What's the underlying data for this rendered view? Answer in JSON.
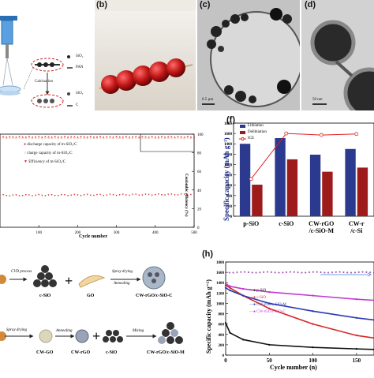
{
  "panels": {
    "a": {
      "labels": {
        "sio2_top": "SiO₂",
        "pan": "PAN",
        "calcination": "Calcination",
        "sio2_bot": "SiOₓ",
        "c": "C"
      }
    },
    "b": {
      "label": "(b)"
    },
    "c": {
      "label": "(c)",
      "scale": "0.5 µm"
    },
    "d": {
      "label": "(d)",
      "scale": "50 nm"
    },
    "e": {
      "legend": [
        "discharge capacity of m-SiOₓ/C",
        "charge capacity of m-SiOₓ/C",
        "Efficiency of m-SiOₓ/C"
      ],
      "xlabel": "Cycle number",
      "ylabel_right": "Coulombic efficiency (%)",
      "xticks": [
        "100",
        "200",
        "300",
        "400",
        "500"
      ],
      "yticks_right": [
        "100",
        "80",
        "60",
        "40",
        "20",
        "0"
      ]
    },
    "f": {
      "label": "(f)",
      "ylabel": "Specific capacity (mAh g⁻¹)",
      "legend": [
        "Lithiation",
        "Delithiation",
        "ICE"
      ],
      "yticks": [
        "1800",
        "1600",
        "1400",
        "1200",
        "1000",
        "800",
        "600",
        "400",
        "200",
        "0"
      ],
      "categories": [
        [
          "p-SiO",
          ""
        ],
        [
          "c-SiO",
          ""
        ],
        [
          "CW-rGO",
          "/c-SiO-M"
        ],
        [
          "CW-r",
          "/c-Si"
        ]
      ]
    },
    "g": {
      "labels": {
        "cvd": "CVD process",
        "csio": "c-SiO",
        "go": "GO",
        "spray1": "Spray drying",
        "anneal1": "Annealing",
        "product1": "CW-rGO/c-SiO-C",
        "spray2": "Spray drying",
        "annealing2": "Annealing",
        "cwgo": "CW-GO",
        "cwrgo": "CW-rGO",
        "csio2": "c-SiO",
        "mixing": "Mixing",
        "product2": "CW-rGO/c-SiO-M"
      }
    },
    "h": {
      "label": "(h)",
      "ylabel": "Specific capacity (mAh g⁻¹)",
      "xlabel": "Cycle number (n)",
      "xticks": [
        "0",
        "50",
        "100",
        "150"
      ],
      "yticks": [
        "1800",
        "1600",
        "1400",
        "1200",
        "1000",
        "800",
        "600",
        "400",
        "200",
        "0"
      ],
      "legend": [
        "p-SiO",
        "c-SiO",
        "CW-rGO/c-SiO-M",
        "CW-rGO/c-SiO-C"
      ]
    }
  },
  "chart_data": [
    {
      "type": "scatter",
      "xlabel": "Cycle number",
      "ylabel_right": "Coulombic efficiency (%)",
      "xlim": [
        0,
        500
      ],
      "ylim_right": [
        0,
        100
      ],
      "series": [
        {
          "name": "discharge capacity of m-SiOₓ/C",
          "x": [
            0,
            500
          ],
          "y": [
            97,
            97
          ],
          "color": "#d62828"
        },
        {
          "name": "charge capacity of m-SiOₓ/C",
          "x": [
            0,
            500
          ],
          "y": [
            96,
            96
          ],
          "color": "#e87b7b"
        },
        {
          "name": "Efficiency of m-SiOₓ/C",
          "x": [
            0,
            500
          ],
          "y": [
            34,
            35
          ],
          "color": "#d62828"
        }
      ]
    },
    {
      "type": "bar",
      "ylabel": "Specific capacity (mAh g⁻¹)",
      "ylim": [
        0,
        1800
      ],
      "categories": [
        "p-SiO",
        "c-SiO",
        "CW-rGO/c-SiO-M",
        "CW-r.../c-Si..."
      ],
      "series": [
        {
          "name": "Lithiation",
          "values": [
            1400,
            1510,
            1190,
            1300
          ],
          "color": "#2b3a8f"
        },
        {
          "name": "Delithiation",
          "values": [
            610,
            1100,
            860,
            940
          ],
          "color": "#9e1b1b"
        },
        {
          "name": "ICE",
          "values": [
            720,
            1600,
            1570,
            1590
          ],
          "color": "#e02020"
        }
      ]
    },
    {
      "type": "line",
      "xlabel": "Cycle number (n)",
      "ylabel": "Specific capacity (mAh g⁻¹)",
      "xlim": [
        0,
        170
      ],
      "ylim": [
        0,
        1800
      ],
      "series": [
        {
          "name": "p-SiO",
          "x": [
            0,
            5,
            20,
            50,
            100,
            150,
            170
          ],
          "y": [
            620,
            430,
            300,
            200,
            150,
            120,
            110
          ],
          "color": "#111111"
        },
        {
          "name": "c-SiO",
          "x": [
            0,
            5,
            20,
            50,
            100,
            150,
            170
          ],
          "y": [
            1350,
            1300,
            1150,
            900,
            600,
            380,
            330
          ],
          "color": "#d62828"
        },
        {
          "name": "CW-rGO/c-SiO-M",
          "x": [
            0,
            5,
            20,
            50,
            100,
            150,
            170
          ],
          "y": [
            1300,
            1250,
            1150,
            1000,
            850,
            720,
            680
          ],
          "color": "#2b3ab0"
        },
        {
          "name": "CW-rGO/c-SiO-C",
          "x": [
            0,
            5,
            20,
            50,
            100,
            150,
            170
          ],
          "y": [
            1380,
            1330,
            1280,
            1220,
            1150,
            1080,
            1060
          ],
          "color": "#c23bd0"
        }
      ]
    }
  ]
}
